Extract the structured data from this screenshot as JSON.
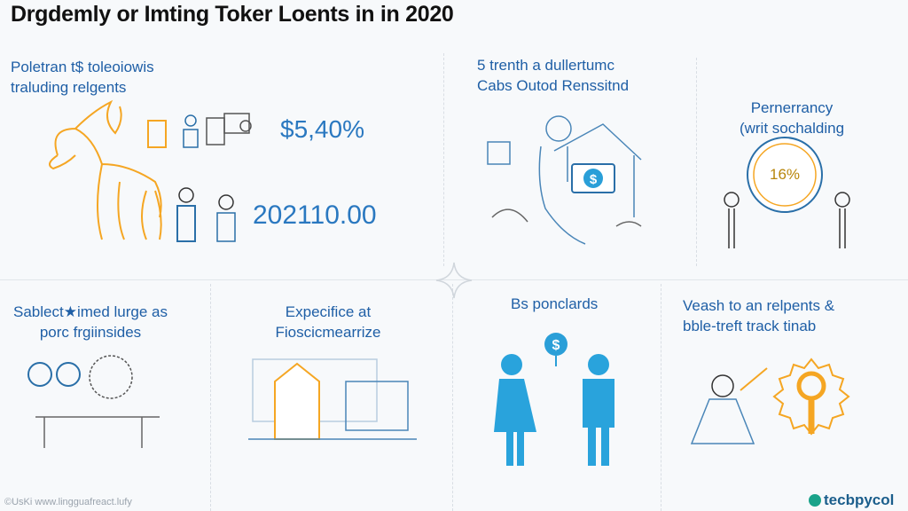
{
  "title": "Drgdemly or Imting Toker Loents in in 2020",
  "panels": {
    "p1": {
      "caption": [
        "Poletran t$ toleoiowis",
        "traluding relgents"
      ],
      "value1": "$5,40%",
      "value2": "202110.00"
    },
    "p2": {
      "caption": [
        "5 trenth a dullertumc",
        "Cabs Outod Renssitnd"
      ]
    },
    "p3": {
      "caption": [
        "Pernerrancy",
        "(writ sochalding"
      ],
      "badge": "16%"
    },
    "p4": {
      "caption": [
        "Sablect★imed lurge as",
        "porc frgiinsides"
      ]
    },
    "p5": {
      "caption": [
        "Expecifice at",
        "Fiosciсmearrize"
      ]
    },
    "p6": {
      "caption": [
        "Bs ponclards"
      ],
      "coin": "$"
    },
    "p7": {
      "caption": [
        "Veash to an relpents &",
        "bble-treft track tinab"
      ]
    }
  },
  "footer": {
    "credit": "©UsKi www.lingguafreact.lufy",
    "brand": "tecbpycol"
  },
  "colors": {
    "accent": "#2a9fd8",
    "orange": "#f5a623",
    "text_blue": "#1f5fa6"
  }
}
